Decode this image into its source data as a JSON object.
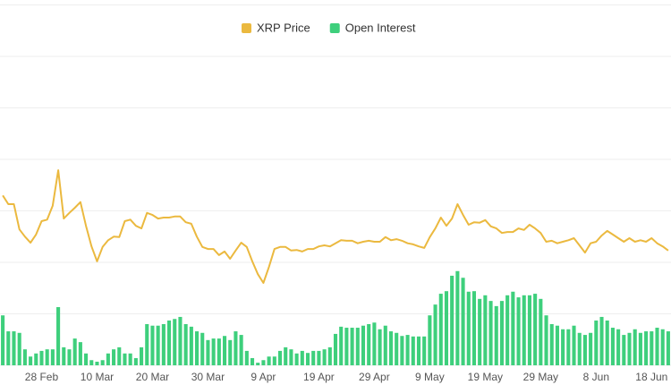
{
  "chart_data": {
    "type": "bar-line",
    "categories": [
      null,
      null,
      null,
      null,
      null,
      null,
      null,
      "28 Feb",
      null,
      null,
      null,
      null,
      null,
      null,
      null,
      null,
      null,
      "10 Mar",
      null,
      null,
      null,
      null,
      null,
      null,
      null,
      null,
      null,
      "20 Mar",
      null,
      null,
      null,
      null,
      null,
      null,
      null,
      null,
      null,
      "30 Mar",
      null,
      null,
      null,
      null,
      null,
      null,
      null,
      null,
      null,
      "9 Apr",
      null,
      null,
      null,
      null,
      null,
      null,
      null,
      null,
      null,
      "19 Apr",
      null,
      null,
      null,
      null,
      null,
      null,
      null,
      null,
      null,
      "29 Apr",
      null,
      null,
      null,
      null,
      null,
      null,
      null,
      null,
      null,
      "9 May",
      null,
      null,
      null,
      null,
      null,
      null,
      null,
      null,
      null,
      "19 May",
      null,
      null,
      null,
      null,
      null,
      null,
      null,
      null,
      null,
      "29 May",
      null,
      null,
      null,
      null,
      null,
      null,
      null,
      null,
      null,
      "8 Jun",
      null,
      null,
      null,
      null,
      null,
      null,
      null,
      null,
      null,
      "18 Jun",
      null,
      null,
      null
    ],
    "series": [
      {
        "name": "XRP Price",
        "kind": "line",
        "color": "#ebb93f",
        "values": [
          3.3,
          3.13,
          3.13,
          2.64,
          2.5,
          2.38,
          2.54,
          2.8,
          2.83,
          3.1,
          3.79,
          2.85,
          2.96,
          3.06,
          3.17,
          2.71,
          2.31,
          2.02,
          2.3,
          2.43,
          2.5,
          2.49,
          2.8,
          2.83,
          2.71,
          2.66,
          2.96,
          2.92,
          2.85,
          2.87,
          2.87,
          2.89,
          2.89,
          2.78,
          2.75,
          2.5,
          2.3,
          2.26,
          2.26,
          2.14,
          2.21,
          2.07,
          2.23,
          2.38,
          2.3,
          2.02,
          1.77,
          1.6,
          1.91,
          2.26,
          2.3,
          2.3,
          2.23,
          2.24,
          2.21,
          2.26,
          2.26,
          2.31,
          2.33,
          2.31,
          2.37,
          2.43,
          2.42,
          2.42,
          2.37,
          2.4,
          2.42,
          2.4,
          2.4,
          2.49,
          2.43,
          2.45,
          2.42,
          2.37,
          2.35,
          2.31,
          2.28,
          2.49,
          2.66,
          2.87,
          2.71,
          2.85,
          3.13,
          2.92,
          2.73,
          2.78,
          2.77,
          2.82,
          2.7,
          2.66,
          2.57,
          2.59,
          2.59,
          2.66,
          2.63,
          2.73,
          2.66,
          2.57,
          2.4,
          2.42,
          2.37,
          2.4,
          2.43,
          2.47,
          2.33,
          2.19,
          2.37,
          2.4,
          2.52,
          2.61,
          2.54,
          2.47,
          2.4,
          2.47,
          2.4,
          2.43,
          2.4,
          2.47,
          2.37,
          2.31,
          2.23
        ]
      },
      {
        "name": "Open Interest",
        "kind": "bar",
        "color": "#3ecf7c",
        "values": [
          0.97,
          0.66,
          0.66,
          0.63,
          0.31,
          0.17,
          0.23,
          0.28,
          0.31,
          0.31,
          1.13,
          0.35,
          0.31,
          0.52,
          0.45,
          0.23,
          0.1,
          0.07,
          0.1,
          0.23,
          0.31,
          0.35,
          0.23,
          0.23,
          0.14,
          0.35,
          0.8,
          0.77,
          0.77,
          0.8,
          0.87,
          0.9,
          0.94,
          0.8,
          0.75,
          0.66,
          0.63,
          0.49,
          0.52,
          0.52,
          0.57,
          0.49,
          0.66,
          0.59,
          0.28,
          0.14,
          0.05,
          0.1,
          0.17,
          0.17,
          0.28,
          0.35,
          0.31,
          0.23,
          0.28,
          0.24,
          0.28,
          0.28,
          0.31,
          0.35,
          0.61,
          0.75,
          0.73,
          0.73,
          0.73,
          0.77,
          0.8,
          0.83,
          0.7,
          0.77,
          0.66,
          0.63,
          0.57,
          0.59,
          0.56,
          0.56,
          0.56,
          0.97,
          1.18,
          1.39,
          1.44,
          1.74,
          1.83,
          1.7,
          1.43,
          1.44,
          1.29,
          1.36,
          1.25,
          1.15,
          1.25,
          1.36,
          1.43,
          1.32,
          1.36,
          1.36,
          1.39,
          1.29,
          0.97,
          0.8,
          0.77,
          0.7,
          0.7,
          0.77,
          0.63,
          0.59,
          0.63,
          0.87,
          0.94,
          0.87,
          0.73,
          0.7,
          0.59,
          0.63,
          0.7,
          0.63,
          0.66,
          0.66,
          0.73,
          0.7,
          0.66
        ]
      }
    ],
    "ylim": [
      0,
      7
    ],
    "yticks": [
      0,
      1,
      2,
      3,
      4,
      5,
      6,
      7
    ],
    "grid": true,
    "legend": "top"
  }
}
